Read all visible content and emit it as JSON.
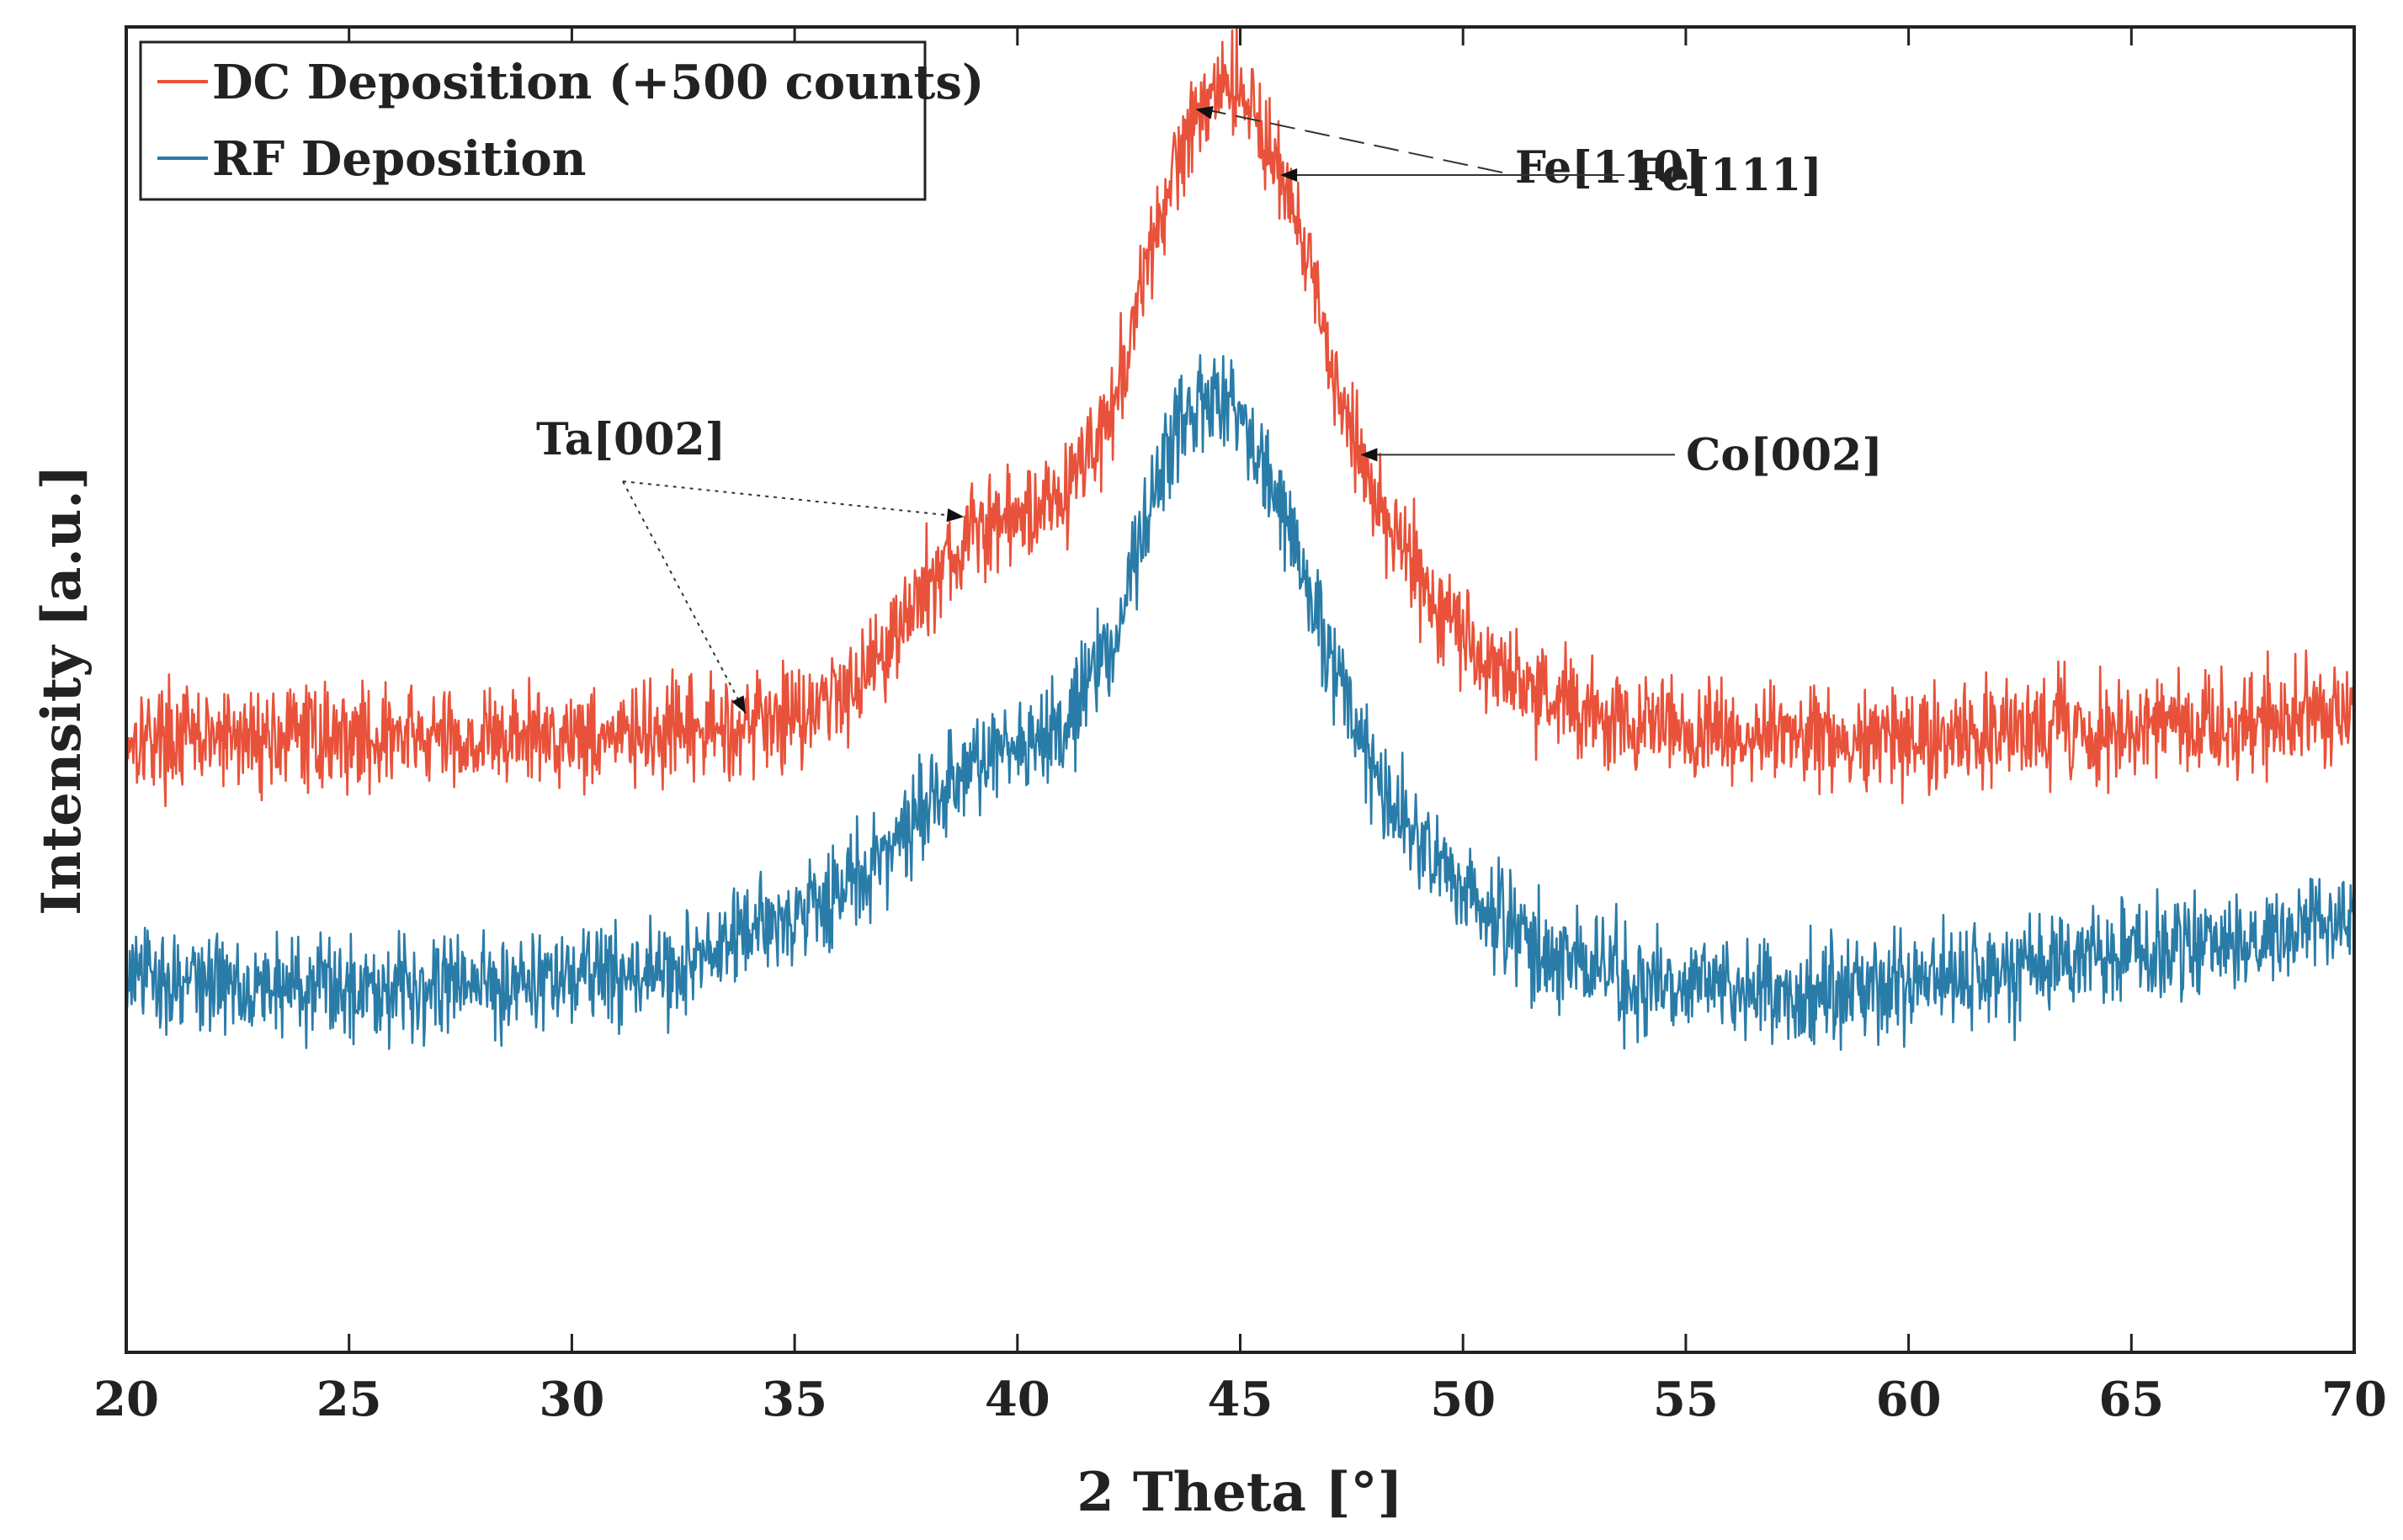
{
  "chart_data": {
    "type": "line",
    "title": "",
    "xlabel": "2 Theta [°]",
    "ylabel": "Intensity [a.u.]",
    "xlim": [
      20,
      70
    ],
    "ylim": [
      0,
      2900
    ],
    "xticks": [
      "20",
      "25",
      "30",
      "35",
      "40",
      "45",
      "50",
      "55",
      "60",
      "65",
      "70"
    ],
    "yticks": [],
    "grid": false,
    "legend_position": "top-left",
    "series": [
      {
        "name": "DC Deposition (+500 counts)",
        "color": "#e8523a",
        "x": [
          20,
          22,
          24,
          26,
          28,
          30,
          32,
          33,
          34,
          35,
          36,
          37,
          38,
          39,
          40,
          41,
          42,
          42.5,
          43,
          43.5,
          44,
          44.5,
          45,
          45.5,
          46,
          46.5,
          47,
          47.5,
          48,
          49,
          50,
          51,
          52,
          53,
          54,
          56,
          58,
          60,
          62,
          64,
          66,
          68,
          70
        ],
        "values": [
          1350,
          1340,
          1350,
          1345,
          1340,
          1355,
          1345,
          1360,
          1380,
          1400,
          1440,
          1540,
          1680,
          1790,
          1830,
          1880,
          2030,
          2200,
          2400,
          2580,
          2720,
          2780,
          2770,
          2680,
          2550,
          2380,
          2180,
          2020,
          1880,
          1700,
          1570,
          1480,
          1430,
          1390,
          1370,
          1350,
          1340,
          1345,
          1355,
          1360,
          1370,
          1380,
          1400
        ]
      },
      {
        "name": "RF Deposition",
        "color": "#2a7ca8",
        "x": [
          20,
          22,
          24,
          26,
          28,
          30,
          32,
          33,
          34,
          35,
          36,
          37,
          38,
          39,
          40,
          41,
          42,
          42.5,
          43,
          43.5,
          44,
          44.5,
          45,
          45.5,
          46,
          46.5,
          47,
          47.5,
          48,
          49,
          50,
          51,
          52,
          53,
          54,
          56,
          58,
          60,
          62,
          64,
          66,
          68,
          70
        ],
        "values": [
          820,
          810,
          800,
          805,
          810,
          820,
          830,
          860,
          920,
          960,
          1010,
          1080,
          1200,
          1280,
          1330,
          1380,
          1520,
          1680,
          1860,
          2000,
          2070,
          2080,
          2050,
          1960,
          1830,
          1680,
          1520,
          1390,
          1270,
          1110,
          1000,
          920,
          870,
          830,
          810,
          790,
          790,
          810,
          830,
          850,
          880,
          910,
          960
        ]
      }
    ],
    "annotations": [
      {
        "text": "Fe[110]",
        "x": 44.0,
        "series": "DC Deposition (+500 counts)"
      },
      {
        "text": "Fe[111]",
        "x": 45.9,
        "series": "DC Deposition (+500 counts)"
      },
      {
        "text": "Co[002]",
        "x": 47.7,
        "series": "DC Deposition (+500 counts)"
      },
      {
        "text": "Ta[002]",
        "x": [
          33.9,
          38.8
        ],
        "series": "DC Deposition (+500 counts)"
      }
    ]
  }
}
